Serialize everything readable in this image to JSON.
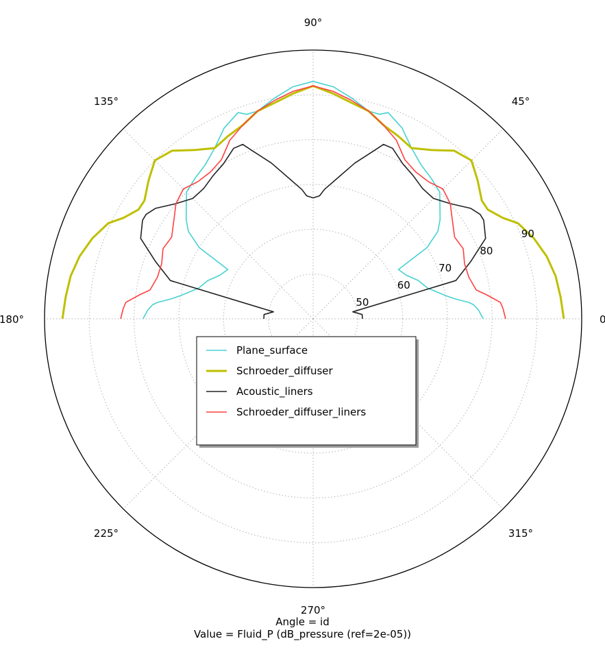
{
  "chart_data": {
    "type": "line",
    "projection": "polar",
    "xlabel": "Angle = id",
    "ylabel": "Value = Fluid_P (dB_pressure (ref=2e-05))",
    "angle_ticks": [
      "0°",
      "45°",
      "90°",
      "135°",
      "180°",
      "225°",
      "270°",
      "315°"
    ],
    "radial_ticks": [
      "50",
      "60",
      "70",
      "80",
      "90"
    ],
    "rlim": [
      40,
      100
    ],
    "grid": true,
    "legend_position": "center",
    "colors": {
      "Plane_surface": "#48d1d1",
      "Schroeder_diffuser": "#bfbf00",
      "Acoustic_liners": "#222222",
      "Schroeder_diffuser_liners": "#ff4040",
      "outline": "#000000",
      "grid": "#bdbdbd"
    },
    "series": [
      {
        "name": "Plane_surface",
        "angles": [
          0,
          3,
          5,
          6,
          8,
          10,
          15,
          20,
          25,
          30,
          32,
          35,
          38,
          40,
          45,
          50,
          55,
          60,
          65,
          70,
          72,
          75,
          80,
          85,
          90
        ],
        "values": [
          78,
          77,
          76,
          75,
          72,
          70,
          66.5,
          65,
          63,
          62,
          70,
          74,
          76,
          77,
          80,
          81,
          82,
          84,
          87,
          89,
          88,
          88,
          90,
          92,
          93
        ]
      },
      {
        "name": "Schroeder_diffuser",
        "angles": [
          0,
          5,
          10,
          15,
          20,
          25,
          28,
          32,
          35,
          40,
          45,
          50,
          55,
          60,
          65,
          70,
          75,
          80,
          85,
          90
        ],
        "values": [
          96,
          95.5,
          95,
          94,
          92.5,
          90.5,
          88,
          86,
          86,
          88,
          90,
          89,
          86,
          84,
          85,
          86,
          88,
          89,
          90.5,
          92
        ]
      },
      {
        "name": "Acoustic_liners",
        "angles": [
          0,
          5,
          10,
          15,
          20,
          25,
          30,
          32,
          35,
          40,
          45,
          50,
          55,
          60,
          65,
          68,
          70,
          75,
          80,
          85,
          87,
          90
        ],
        "values": [
          51,
          51,
          49,
          73,
          77.5,
          82.5,
          84,
          84,
          83,
          80,
          78,
          78,
          79,
          80,
          82,
          82,
          80,
          76,
          72,
          69,
          67.5,
          67
        ]
      },
      {
        "name": "Schroeder_diffuser_liners",
        "angles": [
          0,
          3,
          5,
          8,
          10,
          15,
          20,
          25,
          30,
          35,
          40,
          45,
          50,
          55,
          60,
          65,
          70,
          75,
          80,
          85,
          90
        ],
        "values": [
          83,
          82.5,
          82,
          79,
          77,
          76,
          76,
          77,
          76.5,
          78,
          80,
          81,
          80,
          80,
          81,
          84,
          86,
          88,
          89.5,
          91,
          92
        ]
      }
    ]
  }
}
